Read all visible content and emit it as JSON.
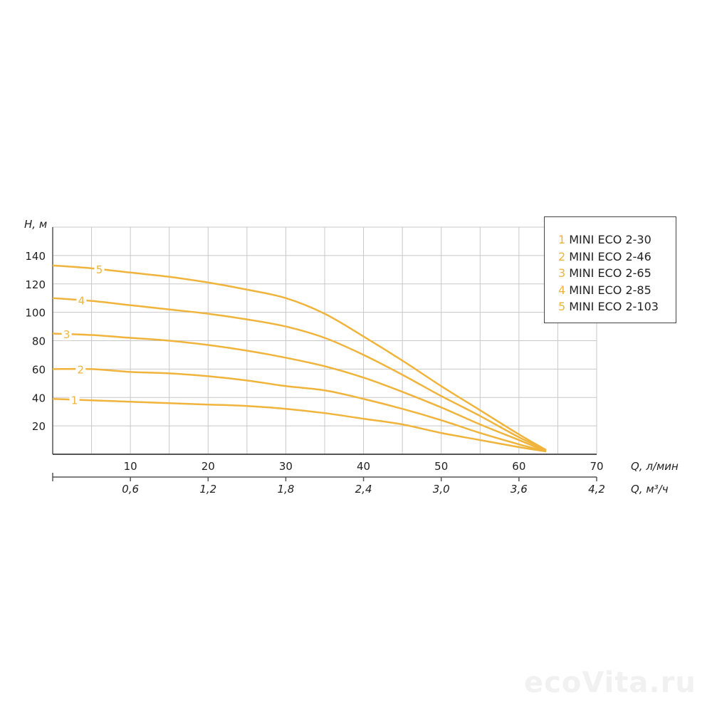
{
  "chart_data": {
    "type": "line",
    "ylabel": "H, м",
    "xlabel": "Q, л/мин",
    "x2label": "Q, м³/ч",
    "xlim": [
      0,
      70
    ],
    "ylim": [
      0,
      160
    ],
    "grid": true,
    "legend_position": "top-right",
    "xticks": [
      "10",
      "20",
      "30",
      "40",
      "50",
      "60",
      "70"
    ],
    "xtick_values": [
      10,
      20,
      30,
      40,
      50,
      60,
      70
    ],
    "x2ticks": [
      "0,6",
      "1,2",
      "1,8",
      "2,4",
      "3,0",
      "3,6",
      "4,2"
    ],
    "yticks": [
      "20",
      "40",
      "60",
      "80",
      "100",
      "120",
      "140"
    ],
    "ytick_values": [
      20,
      40,
      60,
      80,
      100,
      120,
      140
    ],
    "x": [
      0,
      5,
      10,
      15,
      20,
      25,
      30,
      35,
      40,
      45,
      50,
      55,
      60,
      63.5
    ],
    "series": [
      {
        "id": "1",
        "name": "MINI ECO 2-30",
        "label_x": 2.8,
        "values": [
          39,
          38,
          37,
          36,
          35,
          34,
          32,
          29,
          25,
          21,
          15,
          10,
          5,
          2
        ]
      },
      {
        "id": "2",
        "name": "MINI ECO 2-46",
        "label_x": 3.6,
        "values": [
          60,
          60,
          58,
          57,
          55,
          52,
          48,
          45,
          39,
          32,
          24,
          15,
          7,
          2
        ]
      },
      {
        "id": "3",
        "name": "MINI ECO 2-65",
        "label_x": 1.8,
        "values": [
          85,
          84,
          82,
          80,
          77,
          73,
          68,
          62,
          54,
          44,
          33,
          21,
          10,
          2
        ]
      },
      {
        "id": "4",
        "name": "MINI ECO 2-85",
        "label_x": 3.7,
        "values": [
          110,
          108,
          105,
          102,
          99,
          95,
          90,
          82,
          70,
          56,
          41,
          27,
          12,
          3
        ]
      },
      {
        "id": "5",
        "name": "MINI ECO 2-103",
        "label_x": 6,
        "values": [
          133,
          131,
          128,
          125,
          121,
          116,
          110,
          99,
          83,
          66,
          48,
          31,
          14,
          3
        ]
      }
    ],
    "colors": {
      "curve": "#f0b43c",
      "grid": "#c8c8c8",
      "axis": "#555555"
    }
  },
  "watermark": "ecoVita.ru"
}
